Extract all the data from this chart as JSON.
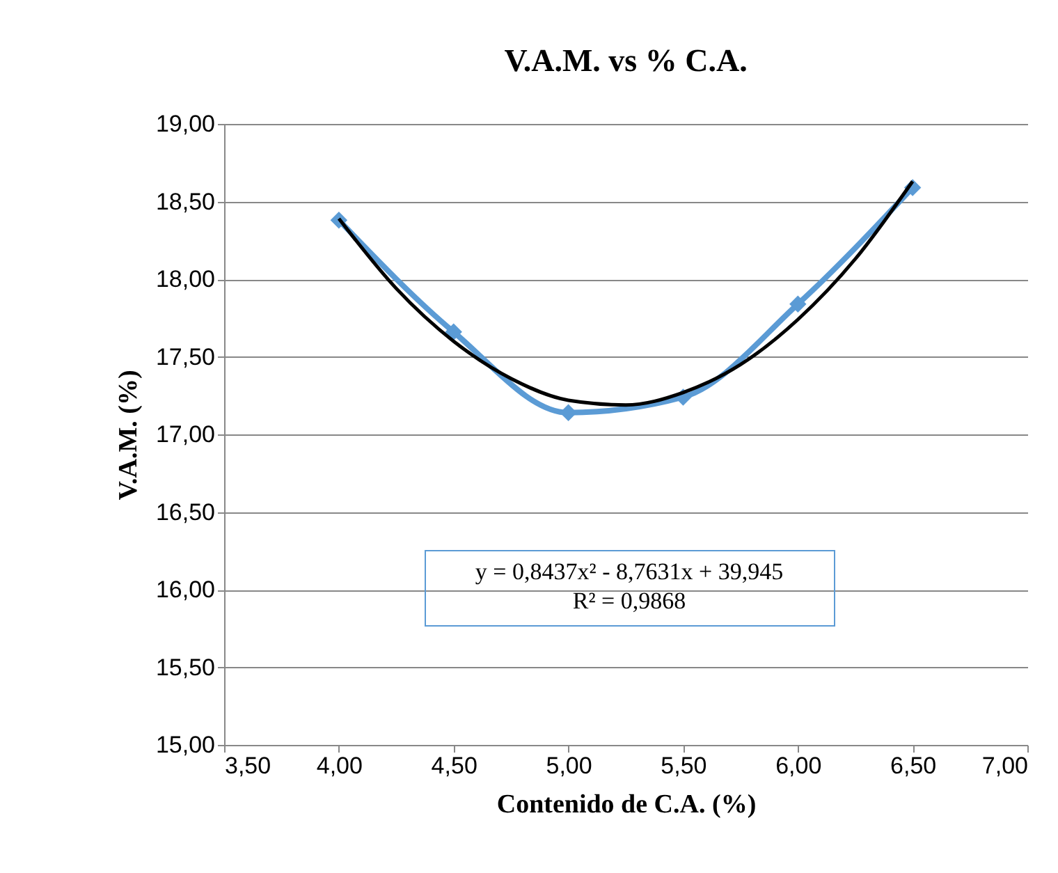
{
  "chart_data": {
    "type": "line",
    "title": "V.A.M. vs % C.A.",
    "xlabel": "Contenido de C.A. (%)",
    "ylabel": "V.A.M. (%)",
    "x": [
      4.0,
      4.5,
      5.0,
      5.5,
      6.0,
      6.5
    ],
    "series": [
      {
        "color": "#5b9bd5",
        "values": [
          18.38,
          17.66,
          17.14,
          17.24,
          17.84,
          18.59
        ],
        "marker": "diamond"
      },
      {
        "type": "line",
        "color": "#000000",
        "marker": "none",
        "x": [
          4.0,
          4.25,
          4.5,
          4.75,
          5.0,
          5.25,
          5.5,
          5.75,
          6.0,
          6.25,
          6.5
        ],
        "values": [
          18.39,
          17.94,
          17.6,
          17.36,
          17.22,
          17.19,
          17.27,
          17.45,
          17.74,
          18.13,
          18.63
        ]
      }
    ],
    "xlim": [
      3.5,
      7.0
    ],
    "xticks": [
      {
        "value": 3.5,
        "label": "3,50"
      },
      {
        "value": 4.0,
        "label": "4,00"
      },
      {
        "value": 4.5,
        "label": "4,50"
      },
      {
        "value": 5.0,
        "label": "5,00"
      },
      {
        "value": 5.5,
        "label": "5,50"
      },
      {
        "value": 6.0,
        "label": "6,00"
      },
      {
        "value": 6.5,
        "label": "6,50"
      },
      {
        "value": 7.0,
        "label": "7,00"
      }
    ],
    "ylim": [
      15.0,
      19.0
    ],
    "yticks": [
      {
        "value": 15.0,
        "label": "15,00"
      },
      {
        "value": 15.5,
        "label": "15,50"
      },
      {
        "value": 16.0,
        "label": "16,00"
      },
      {
        "value": 16.5,
        "label": "16,50"
      },
      {
        "value": 17.0,
        "label": "17,00"
      },
      {
        "value": 17.5,
        "label": "17,50"
      },
      {
        "value": 18.0,
        "label": "18,00"
      },
      {
        "value": 18.5,
        "label": "18,50"
      },
      {
        "value": 19.0,
        "label": "19,00"
      }
    ],
    "grid": "y",
    "annotations": [
      "y = 0,8437x² - 8,7631x + 39,945",
      "R² = 0,9868"
    ]
  }
}
